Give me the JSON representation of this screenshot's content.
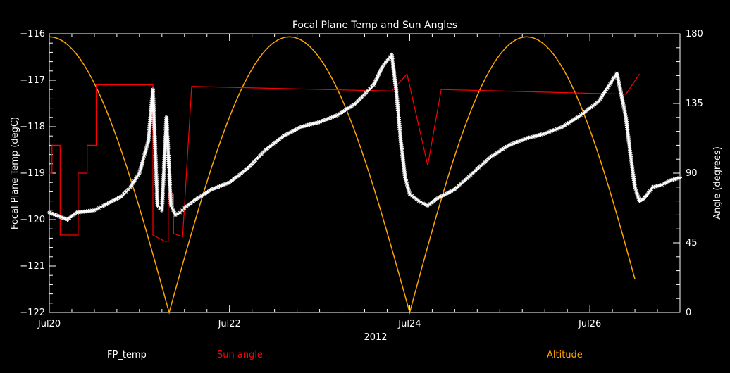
{
  "chart_data": {
    "type": "line",
    "title": "Focal Plane Temp and Sun Angles",
    "xlabel": "2012",
    "ylabel": "Focal Plane Temp (degC)",
    "y2label": "Angle (degrees)",
    "x_tick_labels": [
      "Jul20",
      "Jul22",
      "Jul24",
      "Jul26"
    ],
    "x_ticks_day": [
      0,
      2,
      4,
      6
    ],
    "xlim_day": [
      0,
      7
    ],
    "ylim": [
      -122,
      -116
    ],
    "y_ticks": [
      -122,
      -121,
      -120,
      -119,
      -118,
      -117,
      -116
    ],
    "y2lim": [
      0,
      180
    ],
    "y2_ticks": [
      0,
      45,
      90,
      135,
      180
    ],
    "grid": false,
    "background": "#000000",
    "series": [
      {
        "name": "FP_temp",
        "axis": "left",
        "color": "#ffffff",
        "marker": "asterisk",
        "x_day": [
          0.0,
          0.2,
          0.3,
          0.5,
          0.6,
          0.8,
          0.9,
          1.0,
          1.1,
          1.15,
          1.2,
          1.25,
          1.3,
          1.35,
          1.4,
          1.45,
          1.5,
          1.6,
          1.8,
          2.0,
          2.2,
          2.4,
          2.6,
          2.8,
          3.0,
          3.2,
          3.4,
          3.6,
          3.7,
          3.8,
          3.85,
          3.9,
          3.95,
          4.0,
          4.1,
          4.2,
          4.3,
          4.5,
          4.7,
          4.9,
          5.1,
          5.3,
          5.5,
          5.7,
          5.9,
          6.1,
          6.3,
          6.4,
          6.45,
          6.5,
          6.55,
          6.6,
          6.7,
          6.8,
          6.9,
          7.0
        ],
        "values": [
          -119.85,
          -120.0,
          -119.85,
          -119.8,
          -119.7,
          -119.5,
          -119.3,
          -119.0,
          -118.3,
          -117.2,
          -119.7,
          -119.8,
          -117.8,
          -119.7,
          -119.9,
          -119.85,
          -119.75,
          -119.6,
          -119.35,
          -119.2,
          -118.9,
          -118.5,
          -118.2,
          -118.0,
          -117.9,
          -117.75,
          -117.5,
          -117.1,
          -116.7,
          -116.45,
          -117.2,
          -118.3,
          -119.1,
          -119.45,
          -119.6,
          -119.7,
          -119.55,
          -119.35,
          -119.0,
          -118.65,
          -118.4,
          -118.25,
          -118.15,
          -118.0,
          -117.75,
          -117.45,
          -116.85,
          -117.8,
          -118.6,
          -119.3,
          -119.6,
          -119.55,
          -119.3,
          -119.25,
          -119.15,
          -119.1
        ]
      },
      {
        "name": "Sun angle",
        "axis": "right",
        "color": "#ff0000",
        "x_day": [
          0.0,
          0.03,
          0.03,
          0.12,
          0.12,
          0.32,
          0.32,
          0.42,
          0.42,
          0.52,
          0.52,
          0.62,
          0.62,
          1.15,
          1.15,
          1.28,
          1.28,
          1.32,
          1.32,
          1.38,
          1.38,
          1.48,
          1.48,
          1.58,
          1.58,
          3.8,
          3.8,
          3.97,
          3.97,
          4.2,
          4.2,
          4.35,
          4.35,
          6.4,
          6.4,
          6.55
        ],
        "values": [
          90,
          90,
          108,
          108,
          50,
          50,
          90,
          90,
          108,
          108,
          147,
          147,
          147,
          147,
          50,
          46,
          46,
          46,
          76,
          76,
          51,
          49,
          49,
          146,
          146,
          143,
          143,
          154,
          154,
          95,
          95,
          144,
          144,
          141,
          141,
          154
        ]
      },
      {
        "name": "Altitude",
        "axis": "right",
        "color": "#ffa500",
        "peak_days": [
          0.0,
          2.65,
          5.3
        ],
        "zero_days": [
          1.33,
          4.0
        ],
        "end_day": 6.5,
        "end_value": 29,
        "peak_value": 178
      }
    ],
    "legend": [
      "FP_temp",
      "Sun angle",
      "Altitude"
    ],
    "legend_colors": [
      "#ffffff",
      "#ff0000",
      "#ffa500"
    ],
    "legend_placement": "bottom"
  }
}
